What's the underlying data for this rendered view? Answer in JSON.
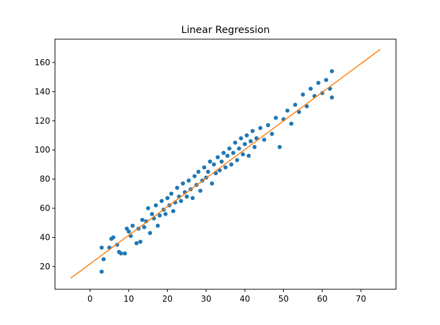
{
  "chart_data": {
    "type": "scatter",
    "title": "Linear Regression",
    "xlim": [
      -9.06,
      79.06
    ],
    "ylim": [
      4.4,
      176.0
    ],
    "xticks": [
      0,
      10,
      20,
      30,
      40,
      50,
      60,
      70
    ],
    "yticks": [
      20,
      40,
      60,
      80,
      100,
      120,
      140,
      160
    ],
    "series": [
      {
        "color": "#1f77b4",
        "x": [
          3,
          3,
          3.5,
          5,
          5.5,
          6,
          7,
          7.5,
          8,
          9,
          9.5,
          10,
          10.5,
          11,
          12,
          12.5,
          13,
          13.5,
          14,
          14.5,
          15,
          15.5,
          16,
          16.5,
          17,
          17.5,
          18,
          18.5,
          19,
          19.5,
          20,
          20.5,
          21,
          21.5,
          22,
          22.5,
          23,
          23.5,
          24,
          24.5,
          25,
          25.5,
          26,
          26.5,
          27,
          27.5,
          28,
          28.5,
          29,
          29.5,
          30,
          30.5,
          31,
          31.5,
          32,
          32.5,
          33,
          33.5,
          34,
          34.5,
          35,
          35.5,
          36,
          36.5,
          37,
          37.5,
          38,
          38.5,
          39,
          39.5,
          40,
          40.5,
          41,
          41.5,
          42,
          42.5,
          43,
          44,
          45,
          46,
          47,
          48,
          49,
          50,
          51,
          52,
          53,
          54,
          55,
          56,
          57,
          58,
          59,
          60,
          61,
          62,
          62.5,
          62.5
        ],
        "values": [
          16.5,
          33,
          25,
          33,
          39,
          40,
          35,
          30,
          29,
          29,
          46,
          44,
          41,
          48,
          36,
          46,
          37,
          52,
          47,
          51,
          60,
          43,
          56,
          53,
          62,
          48,
          55,
          65,
          59,
          56,
          67,
          62,
          70,
          58,
          64,
          74,
          68,
          65,
          77,
          71,
          68,
          79,
          73,
          67,
          82,
          76,
          85,
          72,
          79,
          88,
          81,
          85,
          92,
          77,
          90,
          84,
          95,
          86,
          92,
          98,
          88,
          96,
          101,
          90,
          98,
          105,
          93,
          101,
          108,
          97,
          104,
          110,
          96,
          106,
          113,
          102,
          108,
          115,
          107,
          117,
          111,
          122,
          102,
          121,
          127,
          118,
          131,
          126,
          138,
          130,
          142,
          137,
          146,
          139,
          148,
          142,
          154,
          136
        ]
      },
      {
        "type": "line",
        "color": "#ff7f0e",
        "x": [
          -5,
          75
        ],
        "values": [
          12,
          169
        ]
      }
    ]
  }
}
